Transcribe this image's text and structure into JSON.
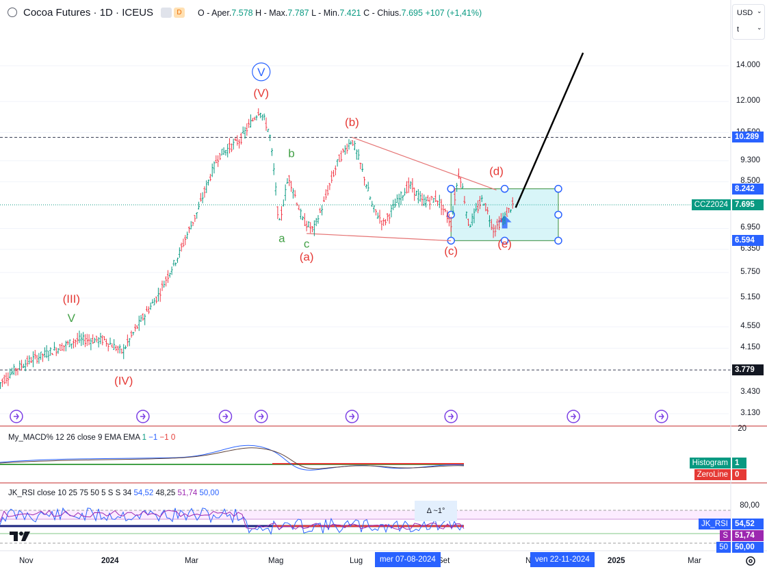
{
  "header": {
    "title": "Cocoa Futures · 1D · ICEUS",
    "badge_d": "D",
    "ohlc": {
      "o_label": "O - Aper.",
      "o_value": "7.578",
      "h_label": "H - Max.",
      "h_value": "7.787",
      "l_label": "L - Min.",
      "l_value": "7.421",
      "c_label": "C - Chius.",
      "c_value": "7.695",
      "change": "+107 (+1,41%)"
    }
  },
  "currency_box": {
    "currency": "USD",
    "unit": "t"
  },
  "chart_data": {
    "type": "candlestick",
    "symbol": "Cocoa Futures",
    "interval": "1D",
    "exchange": "ICEUS",
    "scale": "log",
    "y_ticks": [
      "14.000",
      "12.000",
      "10.500",
      "9.300",
      "8.500",
      "6.950",
      "6.350",
      "5.750",
      "5.150",
      "4.550",
      "4.150",
      "3.430",
      "3.130"
    ],
    "x_ticks": [
      "Nov",
      "2024",
      "Mar",
      "Mag",
      "Lug",
      "Set",
      "Nov",
      "2025",
      "Mar"
    ],
    "price_path": [
      {
        "x": "2023-10-12",
        "y": 3.55
      },
      {
        "x": "2023-10-25",
        "y": 3.8
      },
      {
        "x": "2023-11-05",
        "y": 3.95
      },
      {
        "x": "2023-11-20",
        "y": 4.1
      },
      {
        "x": "2023-12-08",
        "y": 4.3
      },
      {
        "x": "2023-12-28",
        "y": 4.3
      },
      {
        "x": "2024-01-10",
        "y": 4.08
      },
      {
        "x": "2024-01-22",
        "y": 4.6
      },
      {
        "x": "2024-02-05",
        "y": 5.2
      },
      {
        "x": "2024-02-20",
        "y": 6.2
      },
      {
        "x": "2024-03-05",
        "y": 7.5
      },
      {
        "x": "2024-03-20",
        "y": 9.5
      },
      {
        "x": "2024-04-05",
        "y": 10.2
      },
      {
        "x": "2024-04-19",
        "y": 11.6
      },
      {
        "x": "2024-04-26",
        "y": 10.5
      },
      {
        "x": "2024-05-03",
        "y": 7.0
      },
      {
        "x": "2024-05-10",
        "y": 8.7
      },
      {
        "x": "2024-05-20",
        "y": 7.2
      },
      {
        "x": "2024-05-28",
        "y": 6.9
      },
      {
        "x": "2024-06-05",
        "y": 7.8
      },
      {
        "x": "2024-06-15",
        "y": 9.3
      },
      {
        "x": "2024-06-25",
        "y": 10.2
      },
      {
        "x": "2024-07-02",
        "y": 9.0
      },
      {
        "x": "2024-07-10",
        "y": 7.6
      },
      {
        "x": "2024-07-18",
        "y": 7.1
      },
      {
        "x": "2024-07-28",
        "y": 7.8
      },
      {
        "x": "2024-08-06",
        "y": 8.4
      },
      {
        "x": "2024-08-15",
        "y": 7.8
      },
      {
        "x": "2024-08-26",
        "y": 7.9
      },
      {
        "x": "2024-09-05",
        "y": 7.1
      },
      {
        "x": "2024-09-11",
        "y": 8.9
      },
      {
        "x": "2024-09-18",
        "y": 7.0
      },
      {
        "x": "2024-09-28",
        "y": 7.9
      },
      {
        "x": "2024-10-06",
        "y": 6.9
      },
      {
        "x": "2024-10-14",
        "y": 7.3
      },
      {
        "x": "2024-10-20",
        "y": 7.7
      }
    ],
    "last_price": 7.695,
    "price_tags": [
      {
        "label": "",
        "value": "10.289",
        "color": "#2962ff"
      },
      {
        "label": "",
        "value": "8.242",
        "color": "#2962ff"
      },
      {
        "label": "CCZ2024",
        "value": "7.695",
        "color": "#089981"
      },
      {
        "label": "",
        "value": "6.594",
        "color": "#2962ff"
      },
      {
        "label": "",
        "value": "3.779",
        "color": "#131722"
      }
    ],
    "horizontal_lines": [
      10.289,
      3.779
    ],
    "projection_line": {
      "from": {
        "x": "2024-10-22",
        "y": 7.6
      },
      "to": {
        "x": "2024-12-10",
        "y": 14.8
      }
    },
    "target_box": {
      "x0": "2024-09-05",
      "x1": "2024-11-22",
      "y0": 6.594,
      "y1": 8.242,
      "color": "#4dd0e1"
    },
    "triangle_lines": [
      {
        "from": {
          "x": "2024-06-25",
          "y": 10.289
        },
        "to": {
          "x": "2024-10-08",
          "y": 8.2
        }
      },
      {
        "from": {
          "x": "2024-05-23",
          "y": 6.8
        },
        "to": {
          "x": "2024-09-05",
          "y": 6.59
        }
      }
    ],
    "wave_labels": [
      {
        "text": "V",
        "x": "2024-04-20",
        "y": 13.4,
        "color": "#2962ff",
        "circled": true
      },
      {
        "text": "(V)",
        "x": "2024-04-20",
        "y": 12.25,
        "color": "#e53935"
      },
      {
        "text": "(III)",
        "x": "2023-12-04",
        "y": 5.05,
        "color": "#e53935"
      },
      {
        "text": "V",
        "x": "2023-12-04",
        "y": 4.65,
        "color": "#43a047"
      },
      {
        "text": "(IV)",
        "x": "2024-01-11",
        "y": 3.55,
        "color": "#e53935"
      },
      {
        "text": "b",
        "x": "2024-05-12",
        "y": 9.45,
        "color": "#43a047"
      },
      {
        "text": "a",
        "x": "2024-05-05",
        "y": 6.55,
        "color": "#43a047"
      },
      {
        "text": "c",
        "x": "2024-05-23",
        "y": 6.4,
        "color": "#43a047"
      },
      {
        "text": "(a)",
        "x": "2024-05-23",
        "y": 6.05,
        "color": "#e53935"
      },
      {
        "text": "(b)",
        "x": "2024-06-25",
        "y": 10.8,
        "color": "#e53935"
      },
      {
        "text": "(c)",
        "x": "2024-09-05",
        "y": 6.2,
        "color": "#e53935"
      },
      {
        "text": "(d)",
        "x": "2024-10-08",
        "y": 8.75,
        "color": "#e53935"
      },
      {
        "text": "(e)",
        "x": "2024-10-14",
        "y": 6.4,
        "color": "#e53935"
      }
    ],
    "event_markers": [
      "2023-10-25",
      "2024-01-25",
      "2024-03-25",
      "2024-04-20",
      "2024-06-25",
      "2024-09-05",
      "2024-12-03",
      "2025-02-05"
    ],
    "macd": {
      "title": "My_MACD% 12 26 close 9 EMA EMA",
      "params": [
        "1",
        "−1",
        "−1",
        "0"
      ],
      "param_colors": [
        "#089981",
        "#2962ff",
        "#e53935",
        "#e53935"
      ],
      "scale_label": "20",
      "tags": [
        {
          "label": "Histogram",
          "value": "1",
          "color": "#089981"
        },
        {
          "label": "ZeroLine",
          "value": "0",
          "color": "#e53935"
        }
      ]
    },
    "rsi": {
      "title": "JK_RSI close 10 25 75 50 5 S S 34",
      "values": [
        "54,52",
        "48,25",
        "51,74",
        "50,00"
      ],
      "value_colors": [
        "#2962ff",
        "#131722",
        "#9c27b0",
        "#2962ff"
      ],
      "levels": [
        "80,00"
      ],
      "tags": [
        {
          "label": "JK_RSI",
          "value": "54,52",
          "color": "#2962ff"
        },
        {
          "label": "S",
          "value": "51,74",
          "color": "#9c27b0"
        },
        {
          "label": "50",
          "value": "50,00",
          "color": "#2962ff"
        }
      ]
    },
    "x_badges": [
      "mer 07-08-2024",
      "ven 22-11-2024"
    ],
    "crosshair_tooltip": "Δ ~1°"
  }
}
